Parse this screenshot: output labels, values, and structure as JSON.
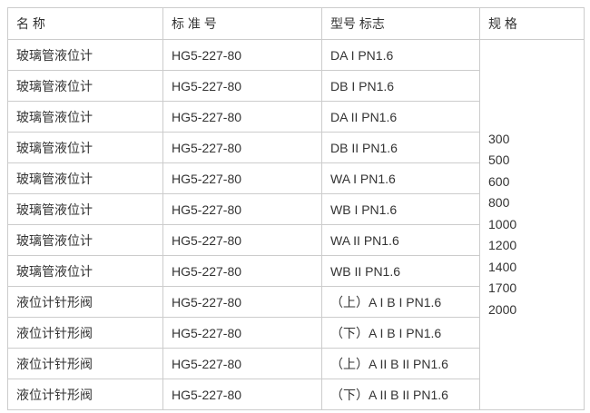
{
  "colors": {
    "border": "#cccccc",
    "text": "#333333",
    "background": "#ffffff"
  },
  "table": {
    "headers": {
      "name": "名 称",
      "standard": "标 准 号",
      "model": "型号 标志",
      "spec": "规 格"
    },
    "rows": [
      {
        "name": "玻璃管液位计",
        "standard": "HG5-227-80",
        "model": "DA I PN1.6"
      },
      {
        "name": "玻璃管液位计",
        "standard": "HG5-227-80",
        "model": "DB I PN1.6"
      },
      {
        "name": "玻璃管液位计",
        "standard": "HG5-227-80",
        "model": "DA II PN1.6"
      },
      {
        "name": "玻璃管液位计",
        "standard": "HG5-227-80",
        "model": "DB II PN1.6"
      },
      {
        "name": "玻璃管液位计",
        "standard": "HG5-227-80",
        "model": "WA I PN1.6"
      },
      {
        "name": "玻璃管液位计",
        "standard": "HG5-227-80",
        "model": "WB I PN1.6"
      },
      {
        "name": "玻璃管液位计",
        "standard": "HG5-227-80",
        "model": "WA II PN1.6"
      },
      {
        "name": "玻璃管液位计",
        "standard": "HG5-227-80",
        "model": "WB II PN1.6"
      },
      {
        "name": "液位计针形阀",
        "standard": "HG5-227-80",
        "model": "（上）A I B I PN1.6"
      },
      {
        "name": "液位计针形阀",
        "standard": "HG5-227-80",
        "model": "（下）A I B I PN1.6"
      },
      {
        "name": "液位计针形阀",
        "standard": "HG5-227-80",
        "model": "（上）A II B II PN1.6"
      },
      {
        "name": "液位计针形阀",
        "standard": "HG5-227-80",
        "model": "（下）A II B II PN1.6"
      }
    ],
    "specs": [
      "300",
      "500",
      "600",
      "800",
      "1000",
      "1200",
      "1400",
      "1700",
      "2000"
    ]
  }
}
